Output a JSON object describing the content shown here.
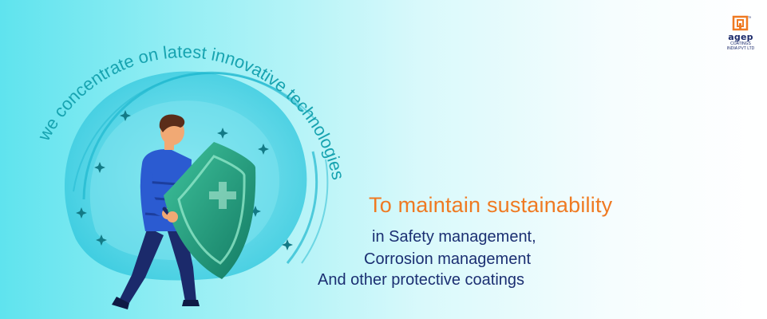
{
  "brand": {
    "name": "agep",
    "subtitle_1": "COATINGS",
    "subtitle_2": "INDIA PVT LTD",
    "tm": "TM"
  },
  "arc_text": "we concentrate on latest innovative technologies",
  "headline": "To maintain sustainability",
  "lines": [
    "in Safety management,",
    "Corrosion management",
    "And other protective coatings"
  ],
  "colors": {
    "accent_orange": "#ef7a22",
    "navy": "#1b2f72",
    "teal": "#17a3b0",
    "shield_green": "#1f9a7c"
  },
  "icons": [
    "shield-icon",
    "sword-icon",
    "sparkle-icon",
    "logo-mark-icon"
  ]
}
